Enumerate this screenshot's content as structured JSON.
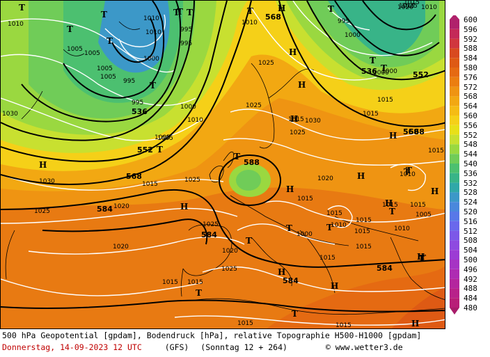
{
  "legend": {
    "levels": [
      "600",
      "596",
      "592",
      "588",
      "584",
      "580",
      "576",
      "572",
      "568",
      "564",
      "560",
      "556",
      "552",
      "548",
      "544",
      "540",
      "536",
      "532",
      "528",
      "524",
      "520",
      "516",
      "512",
      "508",
      "504",
      "500",
      "496",
      "492",
      "488",
      "484",
      "480"
    ],
    "colors": [
      "#b0226c",
      "#c42a58",
      "#d0363e",
      "#d84a20",
      "#de5a14",
      "#e56a12",
      "#eb7e10",
      "#ef9412",
      "#f2a812",
      "#f5bc14",
      "#f5d018",
      "#e8e018",
      "#c8e030",
      "#9ad840",
      "#70cc58",
      "#4cc070",
      "#38b488",
      "#30a8a8",
      "#3c98c8",
      "#4a88dc",
      "#5878e8",
      "#6a68ec",
      "#7c58e8",
      "#8e4ae0",
      "#9c3cd4",
      "#a634c4",
      "#ae2cb2",
      "#b4269e",
      "#b8228a",
      "#b81e78",
      "#a81c6a"
    ]
  },
  "caption": {
    "line1": "500 hPa Geopotential [gpdam], Bodendruck [hPa], relative Topographie H500-H1000 [gpdam]",
    "date": "Donnerstag, 14-09-2023  12 UTC",
    "model": "(GFS)",
    "run": "(Sonntag 12 + 264)",
    "copyright": "© www.wetter3.de"
  },
  "map": {
    "geopotential_labels": [
      "568",
      "536",
      "552",
      "568",
      "584",
      "588",
      "584",
      "584",
      "584",
      "536",
      "552",
      "568",
      "568"
    ],
    "pressure_labels": [
      "1010",
      "1005",
      "1010",
      "1005",
      "1000",
      "1010",
      "995",
      "995",
      "1005",
      "995",
      "1000",
      "1000",
      "995",
      "1010",
      "1005",
      "995",
      "1000",
      "1030",
      "1030",
      "1025",
      "1020",
      "1015",
      "1025",
      "1025",
      "1010",
      "1005",
      "1025",
      "1025",
      "1015",
      "1030",
      "1025",
      "1020",
      "1015",
      "1015",
      "1015",
      "1010",
      "1015",
      "1020",
      "1025",
      "1015",
      "1015",
      "1015",
      "1015",
      "1010",
      "1015",
      "1005",
      "1000",
      "1010",
      "1015",
      "1015",
      "1020",
      "1015",
      "1015",
      "1020",
      "1015",
      "1025",
      "1015",
      "1010",
      "1005",
      "1000",
      "1015",
      "1015"
    ],
    "high_marker": "H",
    "low_marker": "T"
  }
}
